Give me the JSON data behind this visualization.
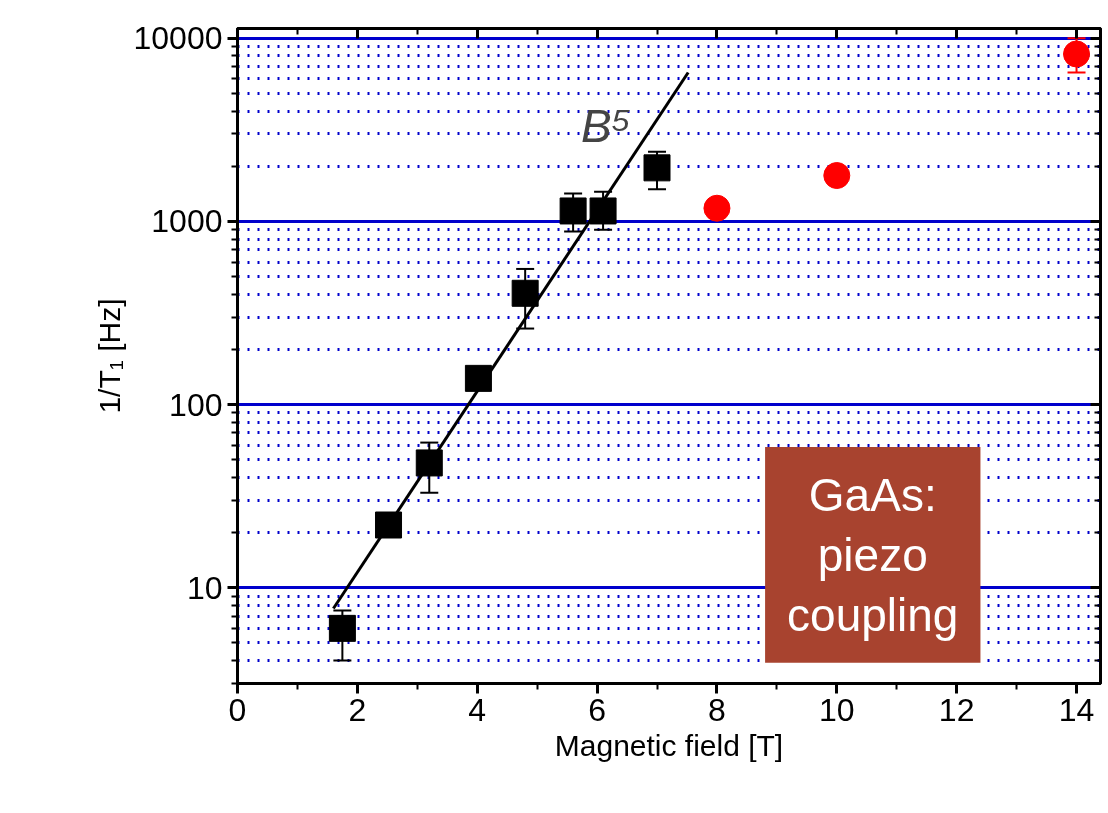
{
  "chart_data": {
    "type": "scatter",
    "xlabel": "Magnetic field [T]",
    "ylabel": "1/T₁ [Hz]",
    "log": "y",
    "xlim": [
      0,
      14.4
    ],
    "xticks": [
      0,
      2,
      4,
      6,
      8,
      10,
      12,
      14
    ],
    "ylim": [
      3,
      11300
    ],
    "yticks": [
      {
        "value": 3,
        "label": null
      },
      {
        "value": 4,
        "label": null
      },
      {
        "value": 5,
        "label": null
      },
      {
        "value": 6,
        "label": null
      },
      {
        "value": 7,
        "label": null
      },
      {
        "value": 8,
        "label": null
      },
      {
        "value": 9,
        "label": null
      },
      10,
      {
        "value": 20,
        "label": null
      },
      {
        "value": 30,
        "label": null
      },
      {
        "value": 40,
        "label": null
      },
      {
        "value": 50,
        "label": null
      },
      {
        "value": 60,
        "label": null
      },
      {
        "value": 70,
        "label": null
      },
      {
        "value": 80,
        "label": null
      },
      {
        "value": 90,
        "label": null
      },
      100,
      {
        "value": 200,
        "label": null
      },
      {
        "value": 300,
        "label": null
      },
      {
        "value": 400,
        "label": null
      },
      {
        "value": 500,
        "label": null
      },
      {
        "value": 600,
        "label": null
      },
      {
        "value": 700,
        "label": null
      },
      {
        "value": 800,
        "label": null
      },
      {
        "value": 900,
        "label": null
      },
      1000,
      {
        "value": 2000,
        "label": null
      },
      {
        "value": 3000,
        "label": null
      },
      {
        "value": 4000,
        "label": null
      },
      {
        "value": 5000,
        "label": null
      },
      {
        "value": 6000,
        "label": null
      },
      {
        "value": 7000,
        "label": null
      },
      {
        "value": 8000,
        "label": null
      },
      {
        "value": 9000,
        "label": null
      },
      10000
    ],
    "grid": "y",
    "series": [
      {
        "marker": "square",
        "color": "#000000",
        "x": [
          1.75,
          2.52,
          3.2,
          4.02,
          4.8,
          5.6,
          6.1,
          7.0
        ],
        "values": [
          6.0,
          22,
          48,
          139,
          405,
          1140,
          1140,
          1960
        ],
        "errors": [
          [
            4,
            7.5
          ],
          null,
          [
            33,
            62
          ],
          null,
          [
            260,
            550
          ],
          [
            880,
            1420
          ],
          [
            900,
            1450
          ],
          [
            1500,
            2400
          ]
        ]
      },
      {
        "marker": "circle",
        "color": "#ff0000",
        "x": [
          8,
          10,
          14
        ],
        "values": [
          1180,
          1780,
          8200
        ],
        "errors": [
          null,
          null,
          [
            6500,
            10000
          ]
        ]
      },
      {
        "type": "line",
        "color": "#000000",
        "x": [
          1.6,
          7.52
        ],
        "values": [
          7.7,
          6500
        ]
      }
    ],
    "annotations": [
      "B⁵",
      "GaAs:\npiezo\ncoupling"
    ]
  }
}
